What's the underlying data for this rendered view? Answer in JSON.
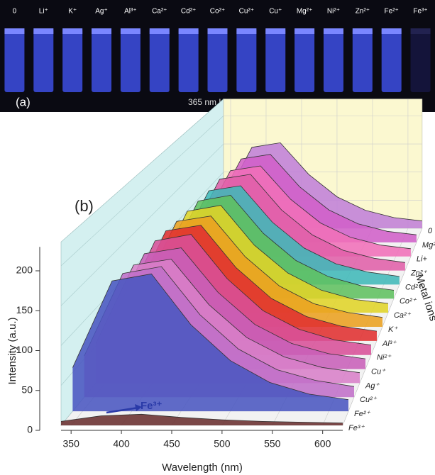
{
  "panel_a": {
    "labels": [
      "0",
      "Li⁺",
      "K⁺",
      "Ag⁺",
      "Al³⁺",
      "Ca²⁺",
      "Cd²⁺",
      "Co²⁺",
      "Cu²⁺",
      "Cu⁺",
      "Mg²⁺",
      "Ni²⁺",
      "Zn²⁺",
      "Fe²⁺",
      "Fe³⁺"
    ],
    "tag": "(a)",
    "caption": "365 nm UV"
  },
  "chart_data": {
    "type": "waterfall3d",
    "tag": "(b)",
    "x_label": "Wavelength (nm)",
    "y_label": "Intensity (a.u.)",
    "z_label": "Metal ions",
    "annotation": "Fe³⁺",
    "x": [
      340,
      380,
      420,
      460,
      500,
      540,
      580,
      620
    ],
    "xlim": [
      340,
      620
    ],
    "xticks": [
      350,
      400,
      450,
      500,
      550,
      600
    ],
    "ylim": [
      0,
      230
    ],
    "yticks": [
      0,
      50,
      100,
      150,
      200
    ],
    "series": [
      {
        "name": "Fe³⁺",
        "color": "#6a3030",
        "values": [
          5,
          12,
          14,
          10,
          7,
          5,
          4,
          3
        ]
      },
      {
        "name": "Fe²⁺",
        "color": "#4a56c0",
        "values": [
          56,
          167,
          176,
          111,
          65,
          37,
          22,
          15
        ]
      },
      {
        "name": "Cu²⁺",
        "color": "#c070c8",
        "values": [
          54,
          162,
          171,
          108,
          63,
          36,
          22,
          14
        ]
      },
      {
        "name": "Ag⁺",
        "color": "#d880c8",
        "values": [
          53,
          158,
          166,
          105,
          61,
          35,
          21,
          14
        ]
      },
      {
        "name": "Cu⁺",
        "color": "#c860b8",
        "values": [
          53,
          158,
          166,
          105,
          61,
          35,
          21,
          14
        ]
      },
      {
        "name": "Ni²⁺",
        "color": "#d85098",
        "values": [
          53,
          160,
          169,
          107,
          62,
          36,
          21,
          14
        ]
      },
      {
        "name": "Al³⁺",
        "color": "#e03030",
        "values": [
          53,
          158,
          166,
          105,
          61,
          35,
          21,
          14
        ]
      },
      {
        "name": "K⁺",
        "color": "#eaa020",
        "values": [
          52,
          155,
          163,
          103,
          60,
          34,
          21,
          14
        ]
      },
      {
        "name": "Ca²⁺",
        "color": "#e0d428",
        "values": [
          51,
          153,
          162,
          102,
          60,
          34,
          20,
          14
        ]
      },
      {
        "name": "Co²⁺",
        "color": "#60c060",
        "values": [
          50,
          151,
          160,
          101,
          59,
          34,
          20,
          13
        ]
      },
      {
        "name": "Cd²⁺",
        "color": "#40b8b8",
        "values": [
          50,
          149,
          157,
          99,
          58,
          33,
          20,
          13
        ]
      },
      {
        "name": "Zn²⁺",
        "color": "#e060a8",
        "values": [
          50,
          149,
          157,
          99,
          58,
          33,
          20,
          13
        ]
      },
      {
        "name": "Li+",
        "color": "#f070b8",
        "values": [
          48,
          144,
          152,
          96,
          56,
          32,
          19,
          13
        ]
      },
      {
        "name": "Mg²⁺",
        "color": "#d060c8",
        "values": [
          48,
          144,
          152,
          96,
          56,
          32,
          19,
          13
        ]
      },
      {
        "name": "0",
        "color": "#c080d8",
        "values": [
          48,
          144,
          152,
          96,
          56,
          32,
          19,
          13
        ]
      }
    ]
  }
}
